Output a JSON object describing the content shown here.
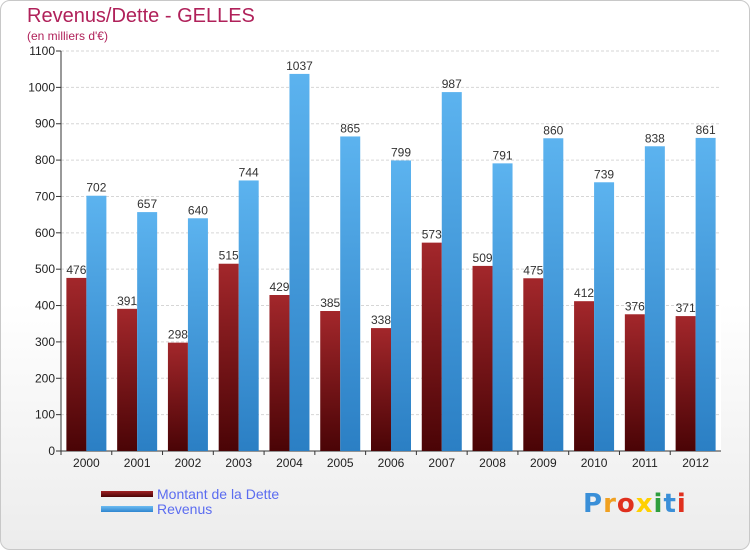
{
  "header": {
    "title": "Revenus/Dette - GELLES",
    "subtitle": "(en milliers d'€)"
  },
  "chart_data": {
    "type": "bar",
    "title": "Revenus/Dette - GELLES",
    "subtitle": "(en milliers d'€)",
    "xlabel": "",
    "ylabel": "",
    "ylim": [
      0,
      1100
    ],
    "yticks": [
      0,
      100,
      200,
      300,
      400,
      500,
      600,
      700,
      800,
      900,
      1000,
      1100
    ],
    "grid": true,
    "legend_position": "bottom-left",
    "categories": [
      "2000",
      "2001",
      "2002",
      "2003",
      "2004",
      "2005",
      "2006",
      "2007",
      "2008",
      "2009",
      "2010",
      "2011",
      "2012"
    ],
    "series": [
      {
        "name": "Montant de la Dette",
        "color": "#7a1416",
        "values": [
          476,
          391,
          298,
          515,
          429,
          385,
          338,
          573,
          509,
          475,
          412,
          376,
          371
        ]
      },
      {
        "name": "Revenus",
        "color": "#4ea6e6",
        "values": [
          702,
          657,
          640,
          744,
          1037,
          865,
          799,
          987,
          791,
          860,
          739,
          838,
          861
        ]
      }
    ]
  },
  "legend": {
    "items": [
      {
        "label": "Montant de la Dette",
        "color": "#6e0a0c"
      },
      {
        "label": "Revenus",
        "color": "#4ea6e6"
      }
    ]
  },
  "logo": {
    "text": "Proxiti",
    "colors": [
      "#3a8fd8",
      "#f0a020",
      "#e0301e",
      "#ffd000",
      "#2e9e3e",
      "#3a8fd8",
      "#e0301e"
    ]
  }
}
